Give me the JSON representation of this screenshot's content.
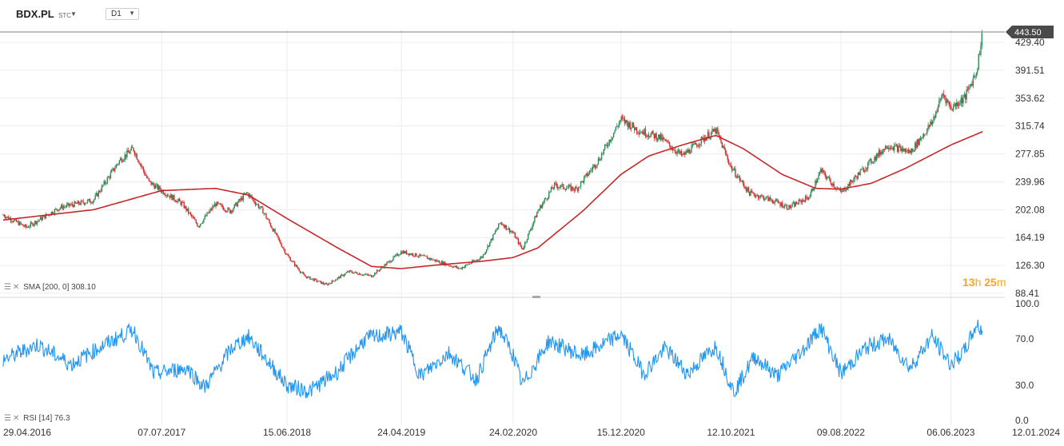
{
  "header": {
    "symbol": "BDX.PL",
    "market": "STC",
    "timeframe": "D1"
  },
  "countdown": {
    "hours": "13",
    "h": "h",
    "minutes": "25",
    "m": "m"
  },
  "indicators": {
    "sma_label": "SMA [200, 0] 308.10",
    "rsi_label": "RSI [14] 76.3"
  },
  "colors": {
    "up": "#2e8b57",
    "down": "#d32f2f",
    "sma": "#c62828",
    "rsi": "#2196f3",
    "price_tag_bg": "#4a4a4a",
    "grid": "#ececec"
  },
  "chart_data": [
    {
      "type": "candlestick",
      "title": "BDX.PL",
      "y_ticks": [
        429.4,
        391.51,
        353.62,
        315.74,
        277.85,
        239.96,
        202.08,
        164.19,
        126.3,
        88.41
      ],
      "y_tick_labels": [
        "429.40",
        "391.51",
        "353.62",
        "315.74",
        "277.85",
        "239.96",
        "202.08",
        "164.19",
        "126.30",
        "88.41"
      ],
      "ylim": [
        88.41,
        443.5
      ],
      "last_price": 443.5,
      "last_price_label": "443.50",
      "x_tick_labels": [
        "29.04.2016",
        "07.07.2017",
        "15.06.2018",
        "24.04.2019",
        "24.02.2020",
        "15.12.2020",
        "12.10.2021",
        "09.08.2022",
        "06.06.2023",
        "12.01.2024"
      ],
      "x_range": [
        "2016-04-29",
        "2024-01-12"
      ],
      "price_path": [
        [
          "2016-04-29",
          195
        ],
        [
          "2016-07-01",
          178
        ],
        [
          "2016-10-01",
          205
        ],
        [
          "2017-01-01",
          215
        ],
        [
          "2017-03-15",
          270
        ],
        [
          "2017-04-20",
          285
        ],
        [
          "2017-06-01",
          240
        ],
        [
          "2017-07-07",
          228
        ],
        [
          "2017-09-01",
          210
        ],
        [
          "2017-10-15",
          180
        ],
        [
          "2017-12-01",
          210
        ],
        [
          "2018-01-10",
          200
        ],
        [
          "2018-02-25",
          225
        ],
        [
          "2018-04-10",
          200
        ],
        [
          "2018-06-15",
          140
        ],
        [
          "2018-08-01",
          112
        ],
        [
          "2018-10-01",
          100
        ],
        [
          "2018-12-01",
          118
        ],
        [
          "2019-02-01",
          112
        ],
        [
          "2019-04-24",
          145
        ],
        [
          "2019-07-01",
          137
        ],
        [
          "2019-10-01",
          122
        ],
        [
          "2019-12-01",
          138
        ],
        [
          "2020-01-20",
          185
        ],
        [
          "2020-02-24",
          170
        ],
        [
          "2020-03-20",
          148
        ],
        [
          "2020-05-01",
          200
        ],
        [
          "2020-06-15",
          235
        ],
        [
          "2020-08-15",
          230
        ],
        [
          "2020-10-15",
          270
        ],
        [
          "2020-12-15",
          325
        ],
        [
          "2021-02-01",
          310
        ],
        [
          "2021-04-01",
          300
        ],
        [
          "2021-06-01",
          275
        ],
        [
          "2021-08-01",
          300
        ],
        [
          "2021-09-01",
          310
        ],
        [
          "2021-10-12",
          260
        ],
        [
          "2021-12-01",
          225
        ],
        [
          "2022-02-01",
          215
        ],
        [
          "2022-03-20",
          205
        ],
        [
          "2022-05-15",
          220
        ],
        [
          "2022-06-15",
          255
        ],
        [
          "2022-08-09",
          225
        ],
        [
          "2022-10-15",
          260
        ],
        [
          "2022-12-15",
          290
        ],
        [
          "2023-02-15",
          280
        ],
        [
          "2023-04-15",
          320
        ],
        [
          "2023-05-15",
          360
        ],
        [
          "2023-06-06",
          340
        ],
        [
          "2023-07-15",
          355
        ],
        [
          "2023-08-15",
          390
        ],
        [
          "2023-09-01",
          443.5
        ]
      ],
      "sma_path": [
        [
          "2016-04-29",
          188
        ],
        [
          "2017-01-01",
          202
        ],
        [
          "2017-07-07",
          228
        ],
        [
          "2017-12-01",
          231
        ],
        [
          "2018-03-01",
          222
        ],
        [
          "2018-06-15",
          190
        ],
        [
          "2018-11-01",
          150
        ],
        [
          "2019-02-01",
          125
        ],
        [
          "2019-04-24",
          122
        ],
        [
          "2019-08-01",
          127
        ],
        [
          "2019-12-01",
          132
        ],
        [
          "2020-02-24",
          137
        ],
        [
          "2020-05-01",
          150
        ],
        [
          "2020-09-01",
          200
        ],
        [
          "2020-12-15",
          250
        ],
        [
          "2021-03-01",
          275
        ],
        [
          "2021-06-01",
          290
        ],
        [
          "2021-09-01",
          303
        ],
        [
          "2021-11-15",
          285
        ],
        [
          "2022-03-01",
          250
        ],
        [
          "2022-06-01",
          231
        ],
        [
          "2022-08-09",
          230
        ],
        [
          "2022-11-01",
          238
        ],
        [
          "2023-02-01",
          258
        ],
        [
          "2023-06-06",
          290
        ],
        [
          "2023-09-01",
          308.1
        ]
      ]
    },
    {
      "type": "line",
      "title": "RSI [14]",
      "y_ticks": [
        100,
        70,
        30,
        0
      ],
      "y_tick_labels": [
        "100.0",
        "70.0",
        "30.0",
        "0.0"
      ],
      "ylim": [
        0,
        100
      ],
      "last_value": 76.3,
      "rsi_path": [
        [
          "2016-04-29",
          52
        ],
        [
          "2016-08-01",
          65
        ],
        [
          "2016-11-01",
          48
        ],
        [
          "2017-01-15",
          62
        ],
        [
          "2017-04-20",
          78
        ],
        [
          "2017-06-15",
          40
        ],
        [
          "2017-09-15",
          45
        ],
        [
          "2017-11-01",
          28
        ],
        [
          "2018-01-15",
          62
        ],
        [
          "2018-03-01",
          72
        ],
        [
          "2018-06-15",
          30
        ],
        [
          "2018-08-15",
          25
        ],
        [
          "2018-11-01",
          42
        ],
        [
          "2019-01-15",
          70
        ],
        [
          "2019-04-24",
          76
        ],
        [
          "2019-06-15",
          38
        ],
        [
          "2019-09-01",
          58
        ],
        [
          "2019-11-15",
          35
        ],
        [
          "2020-01-15",
          80
        ],
        [
          "2020-02-24",
          56
        ],
        [
          "2020-03-20",
          30
        ],
        [
          "2020-06-01",
          68
        ],
        [
          "2020-09-01",
          55
        ],
        [
          "2020-12-15",
          74
        ],
        [
          "2021-02-15",
          40
        ],
        [
          "2021-04-15",
          62
        ],
        [
          "2021-06-15",
          40
        ],
        [
          "2021-09-01",
          64
        ],
        [
          "2021-10-20",
          24
        ],
        [
          "2021-12-15",
          55
        ],
        [
          "2022-02-15",
          38
        ],
        [
          "2022-05-01",
          62
        ],
        [
          "2022-06-15",
          80
        ],
        [
          "2022-08-09",
          40
        ],
        [
          "2022-10-15",
          62
        ],
        [
          "2022-12-15",
          70
        ],
        [
          "2023-02-15",
          45
        ],
        [
          "2023-04-15",
          72
        ],
        [
          "2023-06-06",
          48
        ],
        [
          "2023-07-15",
          60
        ],
        [
          "2023-08-15",
          82
        ],
        [
          "2023-09-01",
          76.3
        ]
      ]
    }
  ]
}
